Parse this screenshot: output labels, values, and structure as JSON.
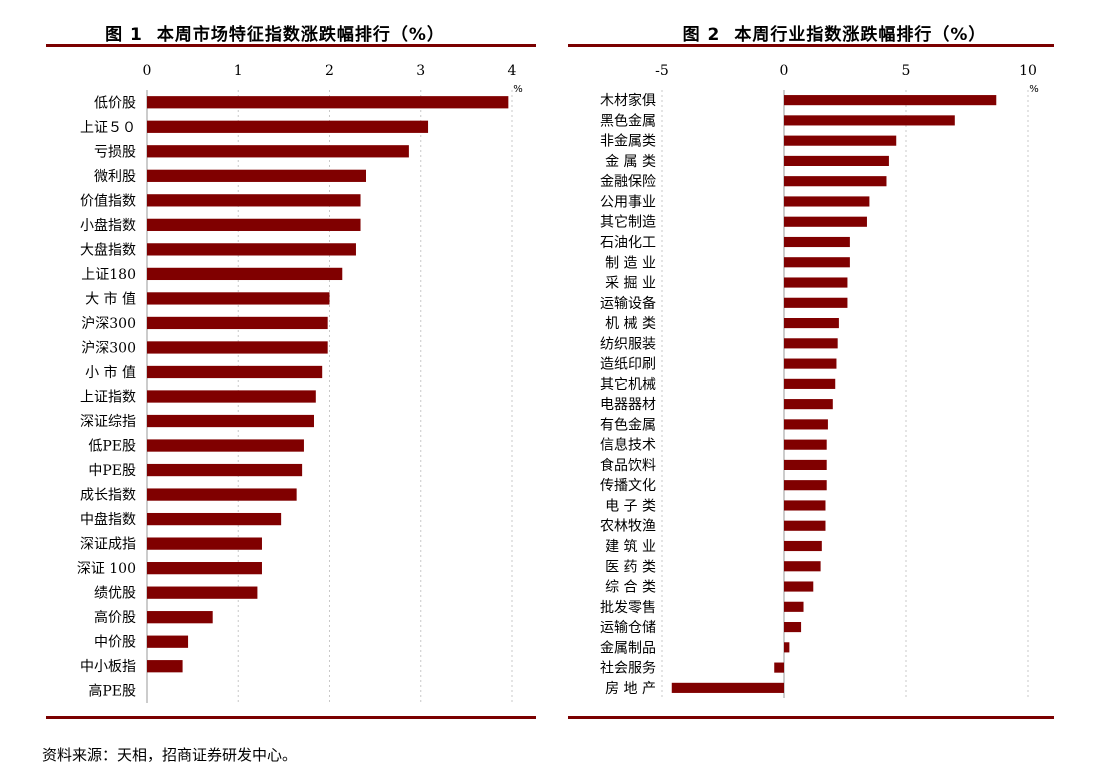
{
  "footer": {
    "source": "资料来源：天相，招商证券研发中心。"
  },
  "chart_data": [
    {
      "type": "bar",
      "orientation": "horizontal",
      "fig_label": "图 1",
      "title": "本周市场特征指数涨跌幅排行（%）",
      "unit": "%",
      "xlim": [
        0,
        4
      ],
      "xticks": [
        "0",
        "1",
        "2",
        "3",
        "4"
      ],
      "grid": true,
      "bar_color": "#800000",
      "categories": [
        "低价股",
        "上证５０",
        "亏损股",
        "微利股",
        "价值指数",
        "小盘指数",
        "大盘指数",
        "上证180",
        "大 市 值",
        "沪深300",
        "沪深300",
        "小 市 值",
        "上证指数",
        "深证综指",
        "低PE股",
        "中PE股",
        "成长指数",
        "中盘指数",
        "深证成指",
        "深证 100",
        "绩优股",
        "高价股",
        "中价股",
        "中小板指",
        "高PE股"
      ],
      "values": [
        3.96,
        3.08,
        2.87,
        2.4,
        2.34,
        2.34,
        2.29,
        2.14,
        2.0,
        1.98,
        1.98,
        1.92,
        1.85,
        1.83,
        1.72,
        1.7,
        1.64,
        1.47,
        1.26,
        1.26,
        1.21,
        0.72,
        0.45,
        0.39,
        0.0
      ]
    },
    {
      "type": "bar",
      "orientation": "horizontal",
      "fig_label": "图 2",
      "title": "本周行业指数涨跌幅排行（%）",
      "unit": "%",
      "xlim": [
        -5,
        10
      ],
      "xticks": [
        "-5",
        "0",
        "5",
        "10"
      ],
      "grid": true,
      "bar_color": "#800000",
      "categories": [
        "木材家俱",
        "黑色金属",
        "非金属类",
        "金 属 类",
        "金融保险",
        "公用事业",
        "其它制造",
        "石油化工",
        "制 造 业",
        "采 掘 业",
        "运输设备",
        "机 械 类",
        "纺织服装",
        "造纸印刷",
        "其它机械",
        "电器器材",
        "有色金属",
        "信息技术",
        "食品饮料",
        "传播文化",
        "电 子 类",
        "农林牧渔",
        "建 筑 业",
        "医 药 类",
        "综 合 类",
        "批发零售",
        "运输仓储",
        "金属制品",
        "社会服务",
        "房 地 产"
      ],
      "values": [
        8.7,
        7.0,
        4.6,
        4.3,
        4.2,
        3.5,
        3.4,
        2.7,
        2.7,
        2.6,
        2.6,
        2.25,
        2.2,
        2.15,
        2.1,
        2.0,
        1.8,
        1.75,
        1.75,
        1.75,
        1.7,
        1.7,
        1.55,
        1.5,
        1.2,
        0.8,
        0.7,
        0.22,
        -0.4,
        -4.6
      ]
    }
  ]
}
